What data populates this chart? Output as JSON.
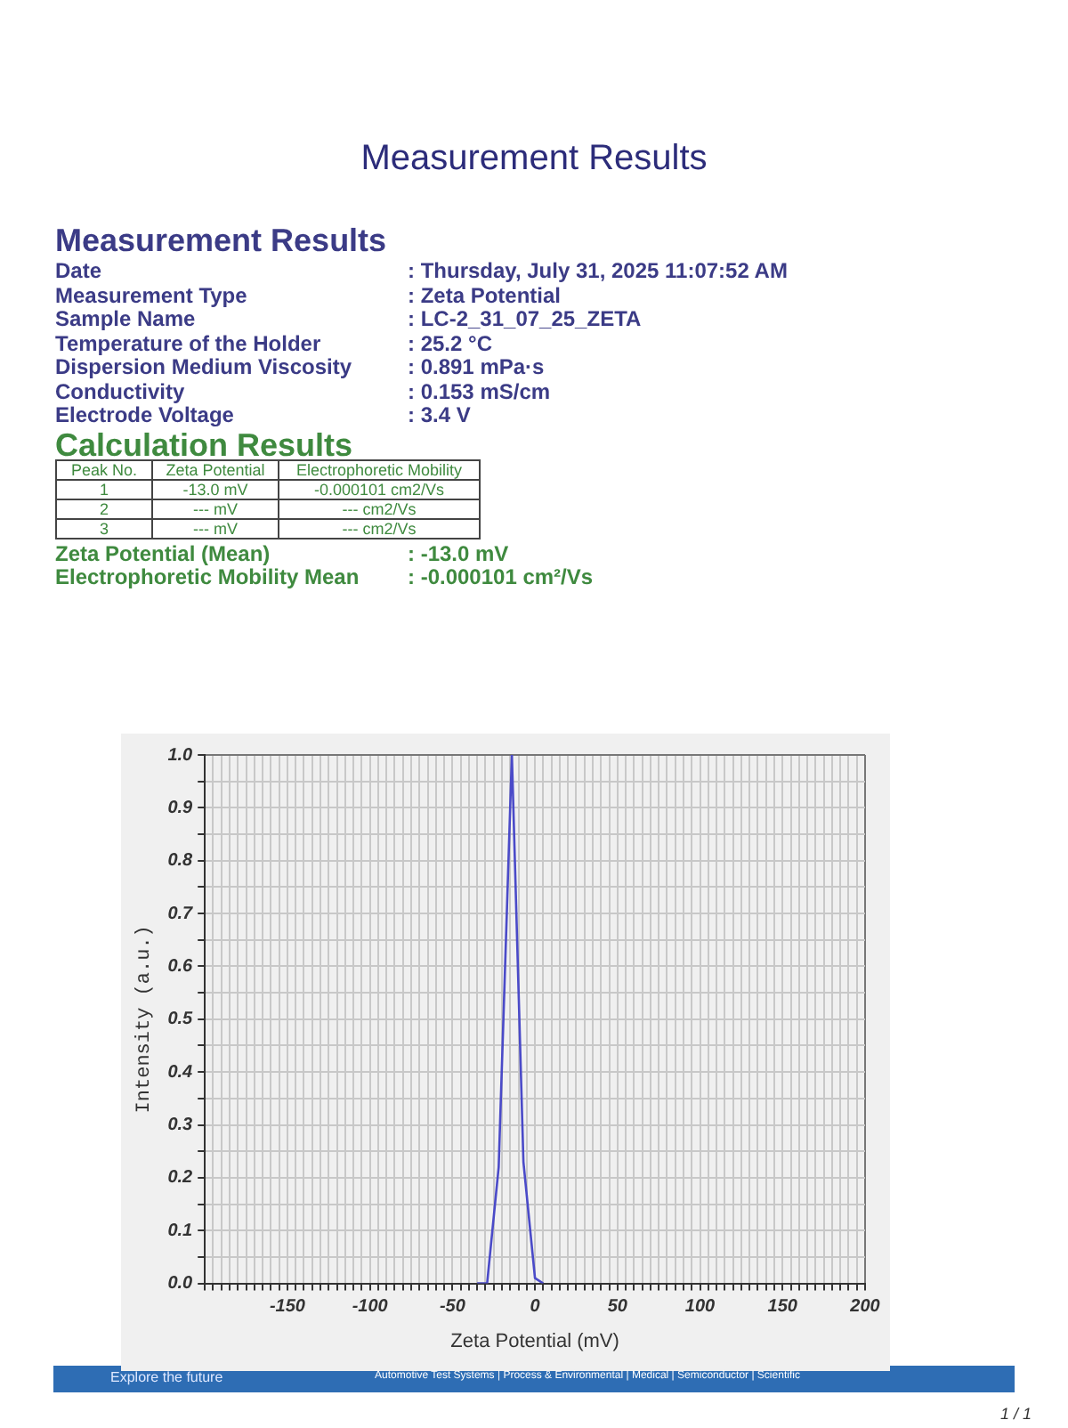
{
  "chart_data": {
    "type": "line",
    "title": "Measurement Results",
    "xlabel": "Zeta Potential (mV)",
    "ylabel": "Intensity (a.u.)",
    "x": [
      -35,
      -29,
      -22,
      -14,
      -7,
      0,
      5
    ],
    "series": [
      {
        "color": "#4a4ac8",
        "values": [
          0,
          0,
          0.22,
          1.0,
          0.23,
          0.01,
          0
        ]
      }
    ],
    "xlim": [
      -200,
      200
    ],
    "xticks": [
      {
        "value": -200,
        "label": null
      },
      {
        "value": -195,
        "label": null
      },
      {
        "value": -190,
        "label": null
      },
      {
        "value": -185,
        "label": null
      },
      {
        "value": -180,
        "label": null
      },
      {
        "value": -175,
        "label": null
      },
      {
        "value": -170,
        "label": null
      },
      {
        "value": -165,
        "label": null
      },
      {
        "value": -160,
        "label": null
      },
      {
        "value": -155,
        "label": null
      },
      -150,
      {
        "value": -145,
        "label": null
      },
      {
        "value": -140,
        "label": null
      },
      {
        "value": -135,
        "label": null
      },
      {
        "value": -130,
        "label": null
      },
      {
        "value": -125,
        "label": null
      },
      {
        "value": -120,
        "label": null
      },
      {
        "value": -115,
        "label": null
      },
      {
        "value": -110,
        "label": null
      },
      {
        "value": -105,
        "label": null
      },
      -100,
      {
        "value": -95,
        "label": null
      },
      {
        "value": -90,
        "label": null
      },
      {
        "value": -85,
        "label": null
      },
      {
        "value": -80,
        "label": null
      },
      {
        "value": -75,
        "label": null
      },
      {
        "value": -70,
        "label": null
      },
      {
        "value": -65,
        "label": null
      },
      {
        "value": -60,
        "label": null
      },
      {
        "value": -55,
        "label": null
      },
      -50,
      {
        "value": -45,
        "label": null
      },
      {
        "value": -40,
        "label": null
      },
      {
        "value": -35,
        "label": null
      },
      {
        "value": -30,
        "label": null
      },
      {
        "value": -25,
        "label": null
      },
      {
        "value": -20,
        "label": null
      },
      {
        "value": -15,
        "label": null
      },
      {
        "value": -10,
        "label": null
      },
      {
        "value": -5,
        "label": null
      },
      0,
      {
        "value": 5,
        "label": null
      },
      {
        "value": 10,
        "label": null
      },
      {
        "value": 15,
        "label": null
      },
      {
        "value": 20,
        "label": null
      },
      {
        "value": 25,
        "label": null
      },
      {
        "value": 30,
        "label": null
      },
      {
        "value": 35,
        "label": null
      },
      {
        "value": 40,
        "label": null
      },
      {
        "value": 45,
        "label": null
      },
      50,
      {
        "value": 55,
        "label": null
      },
      {
        "value": 60,
        "label": null
      },
      {
        "value": 65,
        "label": null
      },
      {
        "value": 70,
        "label": null
      },
      {
        "value": 75,
        "label": null
      },
      {
        "value": 80,
        "label": null
      },
      {
        "value": 85,
        "label": null
      },
      {
        "value": 90,
        "label": null
      },
      {
        "value": 95,
        "label": null
      },
      100,
      {
        "value": 105,
        "label": null
      },
      {
        "value": 110,
        "label": null
      },
      {
        "value": 115,
        "label": null
      },
      {
        "value": 120,
        "label": null
      },
      {
        "value": 125,
        "label": null
      },
      {
        "value": 130,
        "label": null
      },
      {
        "value": 135,
        "label": null
      },
      {
        "value": 140,
        "label": null
      },
      {
        "value": 145,
        "label": null
      },
      150,
      {
        "value": 155,
        "label": null
      },
      {
        "value": 160,
        "label": null
      },
      {
        "value": 165,
        "label": null
      },
      {
        "value": 170,
        "label": null
      },
      {
        "value": 175,
        "label": null
      },
      {
        "value": 180,
        "label": null
      },
      {
        "value": 185,
        "label": null
      },
      {
        "value": 190,
        "label": null
      },
      {
        "value": 195,
        "label": null
      },
      200
    ],
    "ylim": [
      0,
      1.0
    ],
    "yticks": [
      {
        "value": 0,
        "label": "0.0"
      },
      {
        "value": 0.05,
        "label": null
      },
      0.1,
      {
        "value": 0.15,
        "label": null
      },
      0.2,
      {
        "value": 0.25,
        "label": null
      },
      0.3,
      {
        "value": 0.35,
        "label": null
      },
      0.4,
      {
        "value": 0.45,
        "label": null
      },
      0.5,
      {
        "value": 0.55,
        "label": null
      },
      0.6,
      {
        "value": 0.65,
        "label": null
      },
      0.7,
      {
        "value": 0.75,
        "label": null
      },
      0.8,
      {
        "value": 0.85,
        "label": null
      },
      0.9,
      {
        "value": 0.95,
        "label": null
      },
      {
        "value": 1.0,
        "label": "1.0"
      }
    ],
    "grid": true,
    "annotations": [
      "Measurement Results",
      "Date",
      ": Thursday, July 31, 2025 11:07:52 AM",
      "Measurement Type",
      ": Zeta Potential",
      "Sample Name",
      ": LC-2_31_07_25_ZETA",
      "Temperature of the Holder",
      ": 25.2 °C",
      "Dispersion Medium Viscosity",
      ": 0.891 mPa·s",
      "Conductivity",
      ": 0.153 mS/cm",
      "Electrode Voltage",
      ": 3.4 V",
      "Calculation Results",
      "Peak No.",
      "Zeta Potential",
      "Electrophoretic Mobility",
      "1",
      "-13.0 mV",
      "-0.000101 cm2/Vs",
      "2",
      "--- mV",
      "--- cm2/Vs",
      "3",
      "--- mV",
      "--- cm2/Vs",
      "Zeta Potential (Mean)",
      ": -13.0 mV",
      "Electrophoretic Mobility Mean",
      ": -0.000101 cm²/Vs",
      "Explore the future",
      "Automotive Test Systems  |  Process & Environmental  |  Medical  |  Semiconductor  |  Scientific",
      "1 / 1"
    ]
  }
}
